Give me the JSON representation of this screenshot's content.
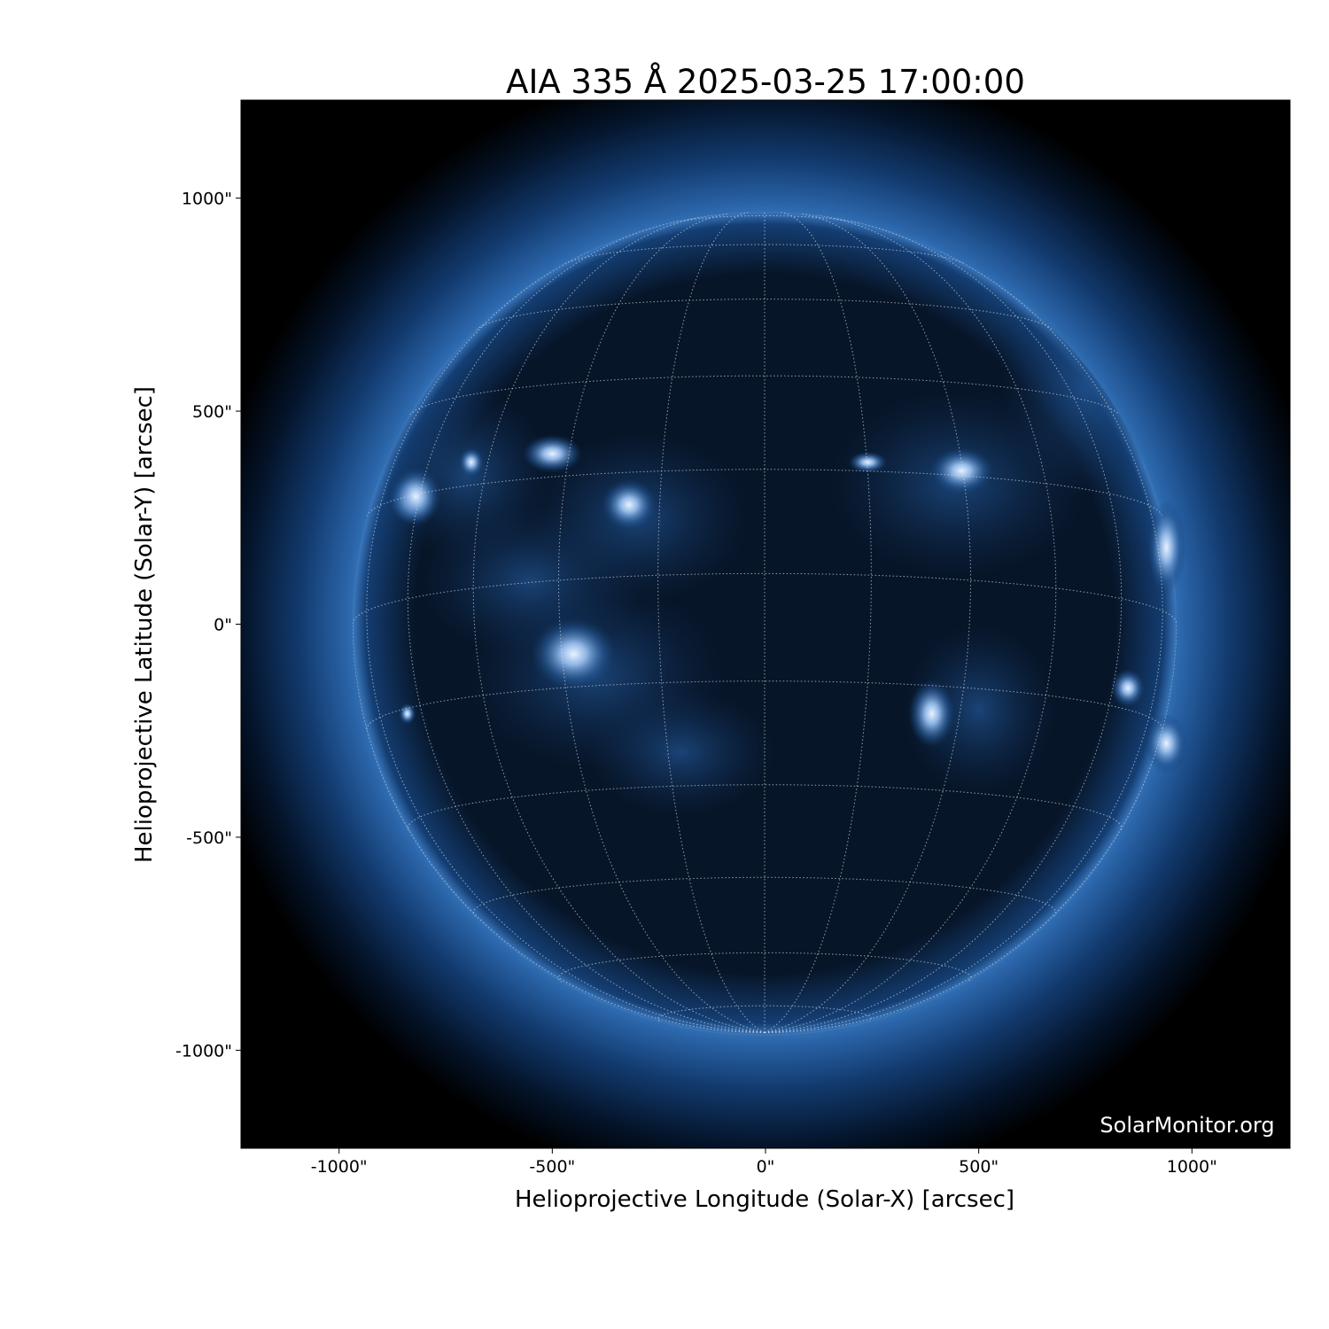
{
  "chart_data": {
    "type": "image",
    "title": "AIA 335 Å 2025-03-25 17:00:00",
    "xlabel": "Helioprojective Longitude (Solar-X) [arcsec]",
    "ylabel": "Helioprojective Latitude (Solar-Y) [arcsec]",
    "xlim": [
      -1230,
      1230
    ],
    "ylim": [
      -1230,
      1230
    ],
    "xticks": [
      -1000,
      -500,
      0,
      500,
      1000
    ],
    "yticks": [
      -1000,
      -500,
      0,
      500,
      1000
    ],
    "xtick_labels": [
      "-1000\"",
      "-500\"",
      "0\"",
      "500\"",
      "1000\""
    ],
    "ytick_labels": [
      "-1000\"",
      "-500\"",
      "0\"",
      "500\"",
      "1000\""
    ],
    "solar_radius_arcsec": 965,
    "grid": "heliographic lat/lon, 15° spacing, dotted",
    "colormap": "sdoaia335 (black-blue-white)",
    "colors": {
      "background": "#000000",
      "disk": "#0a1a33",
      "corona": "#2f6bb0",
      "bright": "#e8f0ff"
    }
  },
  "watermark": "SolarMonitor.org"
}
